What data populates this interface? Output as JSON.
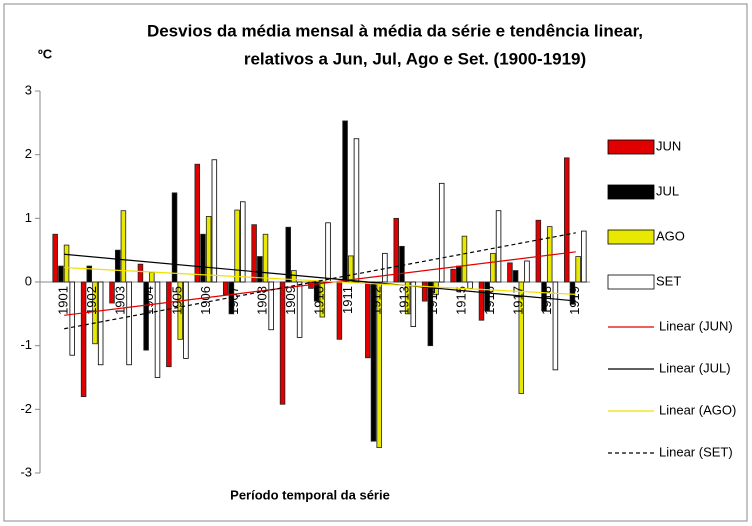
{
  "chart_data": {
    "type": "bar",
    "title": [
      "Desvios da média mensal à média da série e tendência linear,",
      "relativos a Jun, Jul, Ago e Set. (1900-1919)"
    ],
    "y_label": "ºC",
    "x_label": "Período temporal da série",
    "categories": [
      "1901",
      "1902",
      "1903",
      "1904",
      "1905",
      "1906",
      "1907",
      "1908",
      "1909",
      "1910",
      "1911",
      "1912",
      "1913",
      "1914",
      "1915",
      "1916",
      "1917",
      "1918",
      "1919"
    ],
    "series": [
      {
        "name": "JUN",
        "color": "#e00000",
        "trend_name": "Linear (JUN)",
        "trend_color": "#e00000",
        "trend_dash": false,
        "values": [
          0.75,
          -1.8,
          -0.33,
          0.28,
          -1.33,
          1.85,
          -0.2,
          0.9,
          -1.92,
          -0.1,
          -0.9,
          -1.19,
          1.0,
          -0.3,
          0.2,
          -0.6,
          0.3,
          0.97,
          1.95
        ]
      },
      {
        "name": "JUL",
        "color": "#000000",
        "trend_name": "Linear (JUL)",
        "trend_color": "#000000",
        "trend_dash": false,
        "values": [
          0.25,
          0.25,
          0.5,
          -1.07,
          1.4,
          0.75,
          -0.5,
          0.4,
          0.86,
          -0.3,
          2.53,
          -2.5,
          0.56,
          -1.0,
          0.25,
          -0.45,
          0.18,
          -0.45,
          -0.35
        ]
      },
      {
        "name": "AGO",
        "color": "#e8e800",
        "trend_name": "Linear (AGO)",
        "trend_color": "#f0e000",
        "trend_dash": false,
        "values": [
          0.58,
          -0.97,
          1.12,
          0.15,
          -0.9,
          1.03,
          1.13,
          0.75,
          0.18,
          -0.55,
          0.41,
          -2.6,
          -0.5,
          -0.2,
          0.72,
          0.45,
          -1.75,
          0.87,
          0.4
        ]
      },
      {
        "name": "SET",
        "color": "#ffffff",
        "trend_name": "Linear (SET)",
        "trend_color": "#000000",
        "trend_dash": true,
        "values": [
          -1.15,
          -1.3,
          -1.3,
          -1.5,
          -1.2,
          1.92,
          1.26,
          -0.75,
          -0.87,
          0.93,
          2.25,
          0.45,
          -0.7,
          1.55,
          -0.1,
          1.12,
          0.33,
          -1.38,
          0.8
        ]
      }
    ],
    "ylim": [
      -3,
      3
    ],
    "yticks": [
      -3,
      -2,
      -1,
      0,
      1,
      2,
      3
    ],
    "grid": false
  }
}
